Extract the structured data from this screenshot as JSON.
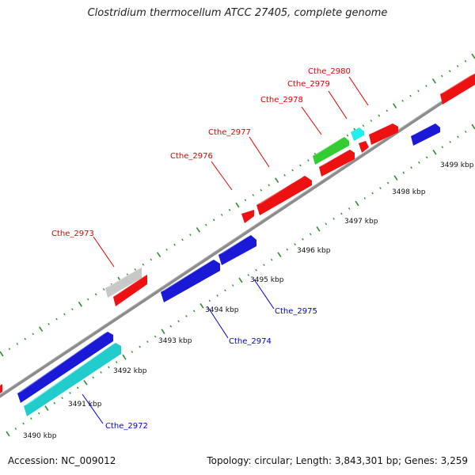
{
  "title": "Clostridium thermocellum ATCC 27405, complete genome",
  "footer": {
    "accession": "Accession: NC_009012",
    "topology": "Topology: circular; Length: 3,843,301 bp; Genes: 3,259"
  },
  "colors": {
    "backbone": "#8c8c8c",
    "ticks": "#2e8b2e",
    "label_red": "#dd0000",
    "label_blue": "#0000cc",
    "gene_red": "#ee1111",
    "gene_blue": "#1a1ad6",
    "gene_cyan": "#22cccc",
    "gene_gray": "#c8c8c8",
    "gene_green": "#33cc33",
    "gene_aqua": "#22eeee"
  },
  "kbp_labels": [
    "3490 kbp",
    "3491 kbp",
    "3492 kbp",
    "3493 kbp",
    "3494 kbp",
    "3495 kbp",
    "3496 kbp",
    "3497 kbp",
    "3498 kbp",
    "3499 kbp"
  ],
  "gene_labels": {
    "outer": [
      "Cthe_2973",
      "Cthe_2976",
      "Cthe_2977",
      "Cthe_2978",
      "Cthe_2979",
      "Cthe_2980"
    ],
    "inner": [
      "Cthe_2972",
      "Cthe_2974",
      "Cthe_2975"
    ]
  }
}
